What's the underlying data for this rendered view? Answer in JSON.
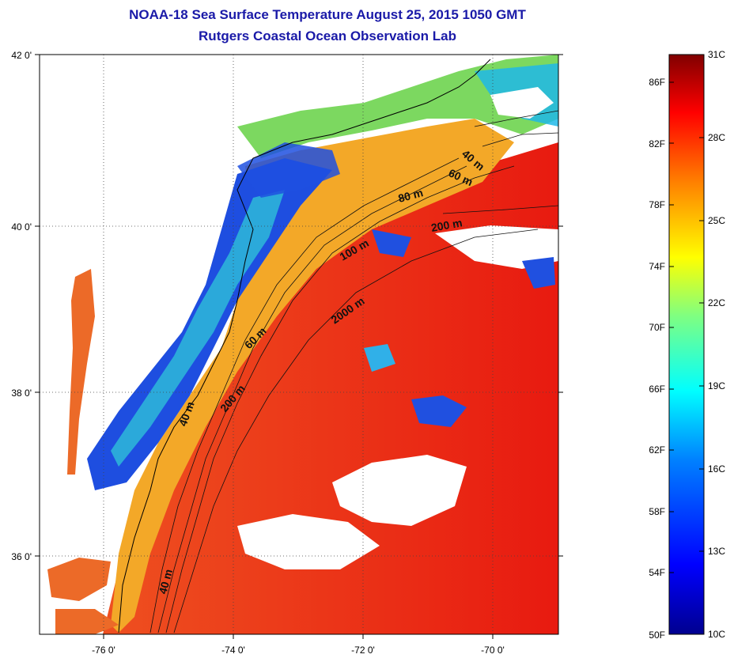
{
  "title_line1": "NOAA-18 Sea Surface Temperature August 25, 2015 1050 GMT",
  "title_line2": "Rutgers Coastal Ocean Observation Lab",
  "x_ticks": [
    "-76 0'",
    "-74 0'",
    "-72 0'",
    "-70 0'"
  ],
  "y_ticks": [
    "42 0'",
    "40 0'",
    "38 0'",
    "36 0'"
  ],
  "contour_labels": [
    "40 m",
    "60 m",
    "80 m",
    "100 m",
    "200 m",
    "2000 m",
    "60 m",
    "200 m",
    "40 m",
    "40 m"
  ],
  "colorbar": {
    "fahrenheit": [
      "86F",
      "82F",
      "78F",
      "74F",
      "70F",
      "66F",
      "62F",
      "58F",
      "54F",
      "50F"
    ],
    "celsius": [
      "31C",
      "28C",
      "25C",
      "22C",
      "19C",
      "16C",
      "13C",
      "10C"
    ],
    "range_c": [
      10,
      31
    ],
    "colors": [
      "#00008f",
      "#0000ff",
      "#0080ff",
      "#00ffff",
      "#80ff80",
      "#ffff00",
      "#ff8000",
      "#ff0000",
      "#800000"
    ]
  },
  "palette": {
    "land": "#ffffff",
    "cloud": "#ffffff",
    "warm": "#ea2a10",
    "shelf": "#f6b020",
    "cool": "#1a3fd8"
  }
}
